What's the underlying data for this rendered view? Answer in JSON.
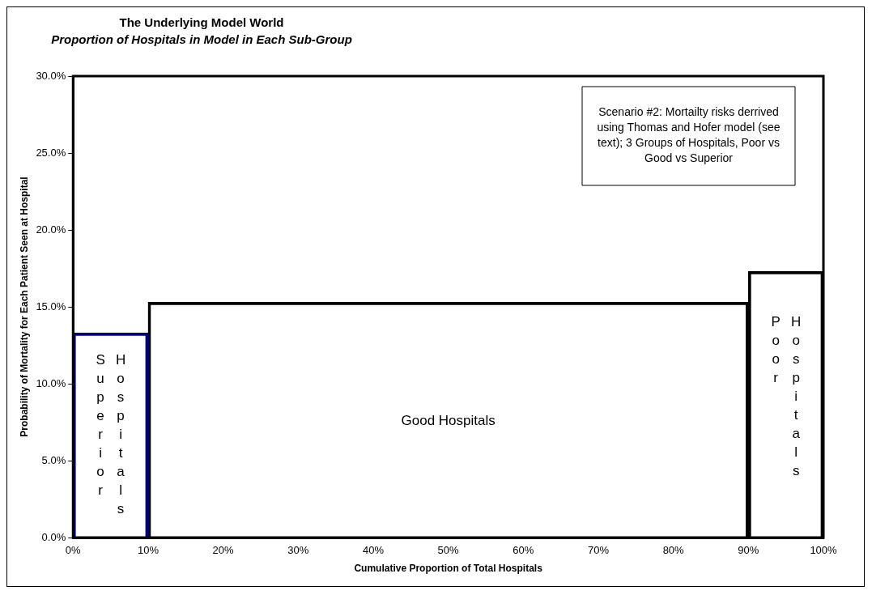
{
  "chart_data": {
    "type": "histogram",
    "title": "The Underlying Model World",
    "subtitle": "Proportion of Hospitals in Model in Each Sub-Group",
    "xlabel": "Cumulative Proportion of Total Hospitals",
    "ylabel": "Probability of Mortality for Each Patient Seen at Hospital",
    "bins": [
      0,
      10,
      90,
      100
    ],
    "values": [
      13.3,
      15.3,
      17.3
    ],
    "colors": [
      "#000080",
      "#000000",
      "#000000"
    ],
    "xlim": [
      0,
      100
    ],
    "xticks": [
      {
        "value": 0,
        "label": "0%"
      },
      {
        "value": 10,
        "label": "10%"
      },
      {
        "value": 20,
        "label": "20%"
      },
      {
        "value": 30,
        "label": "30%"
      },
      {
        "value": 40,
        "label": "40%"
      },
      {
        "value": 50,
        "label": "50%"
      },
      {
        "value": 60,
        "label": "60%"
      },
      {
        "value": 70,
        "label": "70%"
      },
      {
        "value": 80,
        "label": "80%"
      },
      {
        "value": 90,
        "label": "90%"
      },
      {
        "value": 100,
        "label": "100%"
      }
    ],
    "ylim": [
      0,
      30
    ],
    "yticks": [
      {
        "value": 0,
        "label": "0.0%"
      },
      {
        "value": 5,
        "label": "5.0%"
      },
      {
        "value": 10,
        "label": "10.0%"
      },
      {
        "value": 15,
        "label": "15.0%"
      },
      {
        "value": 20,
        "label": "20.0%"
      },
      {
        "value": 25,
        "label": "25.0%"
      },
      {
        "value": 30,
        "label": "30.0%"
      }
    ],
    "annotations": [
      "Superior Hospitals",
      "Good Hospitals",
      "Poor Hospitals",
      "Scenario #2: Mortailty risks derrived using Thomas and Hofer model (see text); 3 Groups of Hospitals, Poor vs Good vs Superior"
    ]
  }
}
